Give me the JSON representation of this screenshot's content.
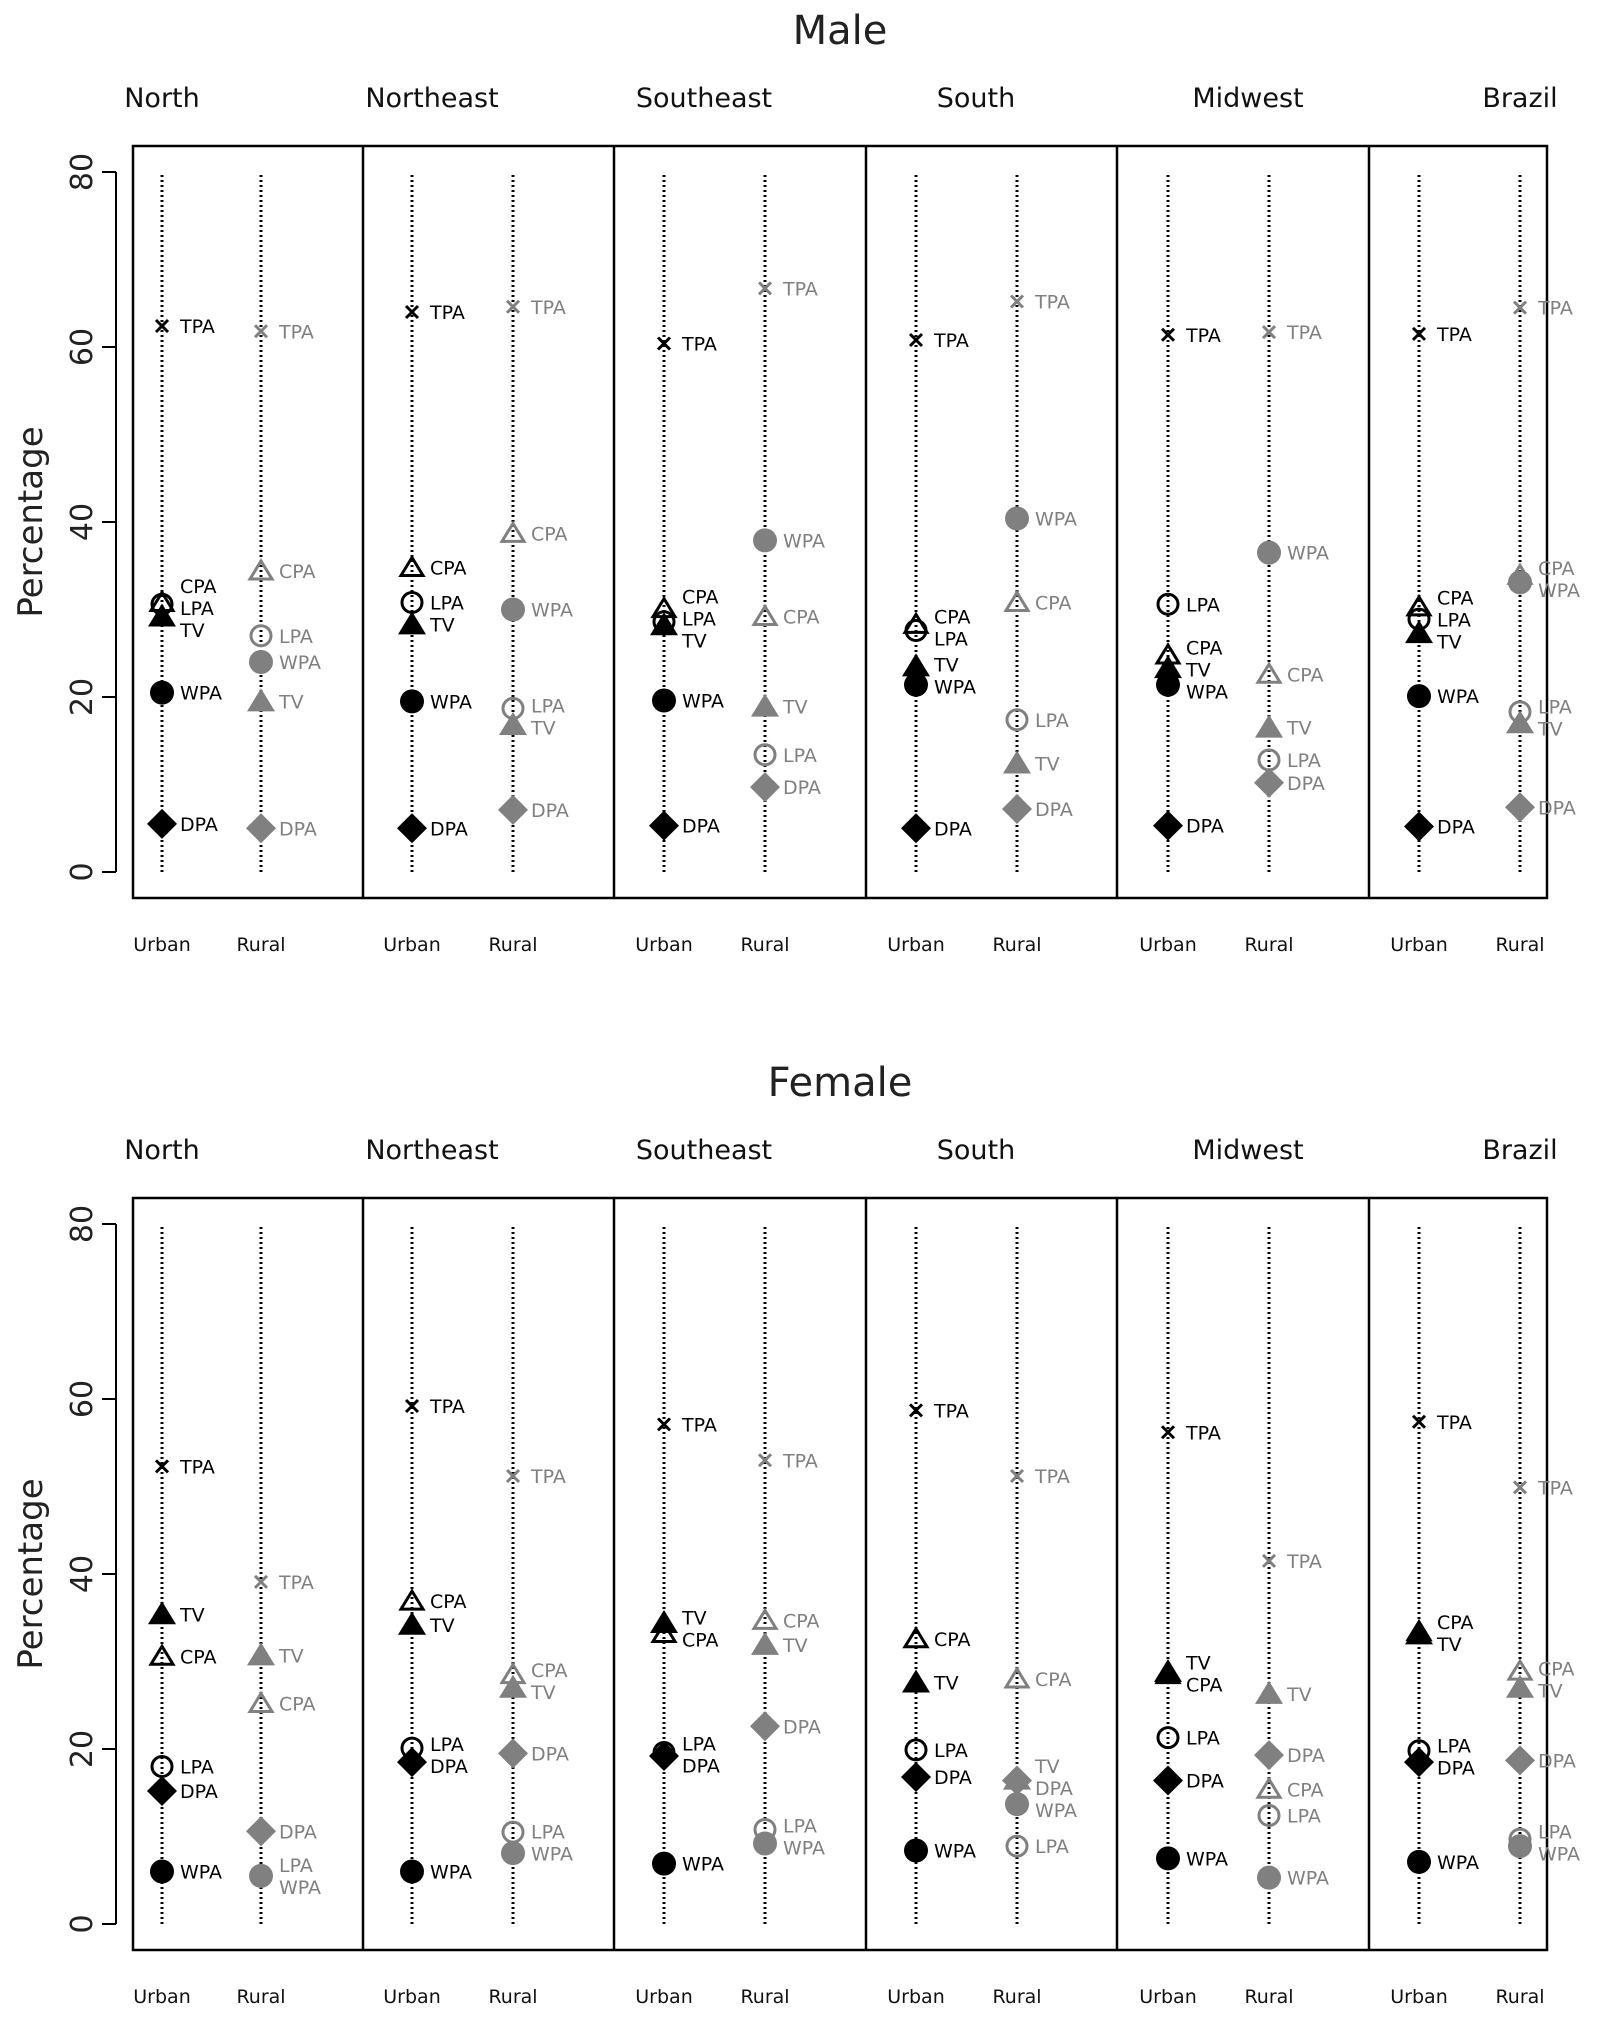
{
  "chart_data": [
    {
      "type": "scatter",
      "title": "Male",
      "ylabel": "Percentage",
      "ylim": [
        0,
        80
      ],
      "yticks": [
        0,
        20,
        40,
        60,
        80
      ],
      "regions": [
        "North",
        "Northeast",
        "Southeast",
        "South",
        "Midwest",
        "Brazil"
      ],
      "areas": [
        "Urban",
        "Rural"
      ],
      "colors": {
        "Urban": "#000000",
        "Rural": "#808080"
      },
      "indicators": [
        "TPA",
        "CPA",
        "LPA",
        "TV",
        "WPA",
        "DPA"
      ],
      "values": {
        "North": {
          "Urban": {
            "TPA": 62.4,
            "CPA": 30.8,
            "LPA": 30.6,
            "TV": 29.2,
            "WPA": 20.5,
            "DPA": 5.5
          },
          "Rural": {
            "TPA": 61.8,
            "CPA": 34.4,
            "LPA": 27.0,
            "TV": 19.5,
            "WPA": 24.0,
            "DPA": 5.0
          }
        },
        "Northeast": {
          "Urban": {
            "TPA": 64.0,
            "CPA": 34.8,
            "LPA": 30.8,
            "TV": 28.3,
            "WPA": 19.5,
            "DPA": 5.0
          },
          "Rural": {
            "TPA": 64.6,
            "CPA": 38.7,
            "LPA": 18.7,
            "TV": 16.8,
            "WPA": 30.0,
            "DPA": 7.1
          }
        },
        "Southeast": {
          "Urban": {
            "TPA": 60.4,
            "CPA": 30.1,
            "LPA": 28.6,
            "TV": 28.2,
            "WPA": 19.6,
            "DPA": 5.3
          },
          "Rural": {
            "TPA": 66.7,
            "CPA": 29.2,
            "LPA": 13.4,
            "TV": 18.9,
            "WPA": 37.9,
            "DPA": 9.7
          }
        },
        "South": {
          "Urban": {
            "TPA": 60.8,
            "CPA": 28.3,
            "LPA": 27.6,
            "TV": 23.5,
            "WPA": 21.4,
            "DPA": 5.0
          },
          "Rural": {
            "TPA": 65.2,
            "CPA": 30.8,
            "LPA": 17.4,
            "TV": 12.4,
            "WPA": 40.4,
            "DPA": 7.2
          }
        },
        "Midwest": {
          "Urban": {
            "TPA": 61.4,
            "CPA": 24.8,
            "LPA": 30.6,
            "TV": 23.3,
            "WPA": 21.4,
            "DPA": 5.3
          },
          "Rural": {
            "TPA": 61.7,
            "CPA": 22.6,
            "LPA": 12.8,
            "TV": 16.5,
            "WPA": 36.5,
            "DPA": 10.2
          }
        },
        "Brazil": {
          "Urban": {
            "TPA": 61.5,
            "CPA": 30.3,
            "LPA": 28.9,
            "TV": 27.3,
            "WPA": 20.1,
            "DPA": 5.2
          },
          "Rural": {
            "TPA": 64.5,
            "CPA": 33.9,
            "LPA": 18.3,
            "TV": 17.0,
            "WPA": 33.1,
            "DPA": 7.4
          }
        }
      }
    },
    {
      "type": "scatter",
      "title": "Female",
      "ylabel": "Percentage",
      "ylim": [
        0,
        80
      ],
      "yticks": [
        0,
        20,
        40,
        60,
        80
      ],
      "regions": [
        "North",
        "Northeast",
        "Southeast",
        "South",
        "Midwest",
        "Brazil"
      ],
      "areas": [
        "Urban",
        "Rural"
      ],
      "colors": {
        "Urban": "#000000",
        "Rural": "#808080"
      },
      "indicators": [
        "TPA",
        "CPA",
        "LPA",
        "TV",
        "WPA",
        "DPA"
      ],
      "values": {
        "North": {
          "Urban": {
            "TPA": 52.3,
            "CPA": 30.6,
            "LPA": 18.0,
            "TV": 35.4,
            "WPA": 6.0,
            "DPA": 15.2
          },
          "Rural": {
            "TPA": 39.1,
            "CPA": 25.2,
            "LPA": 5.5,
            "TV": 30.7,
            "WPA": 5.5,
            "DPA": 10.6
          }
        },
        "Northeast": {
          "Urban": {
            "TPA": 59.2,
            "CPA": 36.9,
            "LPA": 20.1,
            "TV": 34.2,
            "WPA": 6.0,
            "DPA": 18.5
          },
          "Rural": {
            "TPA": 51.2,
            "CPA": 28.5,
            "LPA": 10.5,
            "TV": 27.0,
            "WPA": 8.1,
            "DPA": 19.5
          }
        },
        "Southeast": {
          "Urban": {
            "TPA": 57.1,
            "CPA": 33.2,
            "LPA": 19.6,
            "TV": 34.4,
            "WPA": 6.9,
            "DPA": 19.2
          },
          "Rural": {
            "TPA": 53.0,
            "CPA": 34.7,
            "LPA": 10.8,
            "TV": 31.9,
            "WPA": 9.2,
            "DPA": 22.6
          }
        },
        "South": {
          "Urban": {
            "TPA": 58.7,
            "CPA": 32.6,
            "LPA": 19.9,
            "TV": 27.6,
            "WPA": 8.4,
            "DPA": 16.8
          },
          "Rural": {
            "TPA": 51.2,
            "CPA": 28.0,
            "LPA": 8.9,
            "TV": 16.5,
            "WPA": 13.7,
            "DPA": 16.4
          }
        },
        "Midwest": {
          "Urban": {
            "TPA": 56.2,
            "CPA": 28.5,
            "LPA": 21.3,
            "TV": 28.8,
            "WPA": 7.5,
            "DPA": 16.4
          },
          "Rural": {
            "TPA": 41.5,
            "CPA": 15.4,
            "LPA": 12.4,
            "TV": 26.3,
            "WPA": 5.3,
            "DPA": 19.3
          }
        },
        "Brazil": {
          "Urban": {
            "TPA": 57.4,
            "CPA": 33.4,
            "LPA": 19.8,
            "TV": 33.1,
            "WPA": 7.1,
            "DPA": 18.5
          },
          "Rural": {
            "TPA": 49.9,
            "CPA": 28.9,
            "LPA": 9.7,
            "TV": 27.0,
            "WPA": 8.9,
            "DPA": 18.7
          }
        }
      }
    }
  ]
}
